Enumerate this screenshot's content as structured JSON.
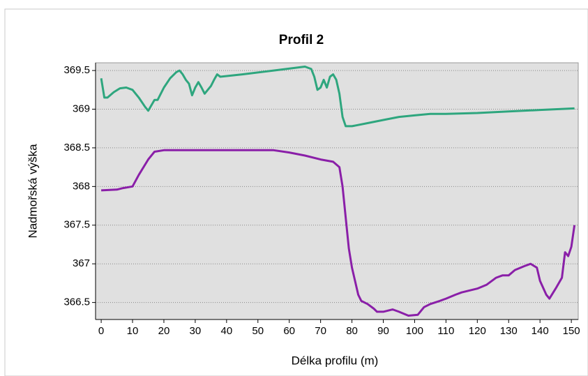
{
  "chart_data": {
    "type": "line",
    "title": "Profil 2",
    "x_label": "Délka profilu (m)",
    "y_label": "Nadmořská výška",
    "series": [
      {
        "color": "#2ea67e",
        "x": [
          0,
          1,
          2,
          4,
          6,
          8,
          10,
          12,
          14,
          15,
          16,
          17,
          18,
          20,
          22,
          24,
          25,
          26,
          27,
          28,
          29,
          30,
          31,
          32,
          33,
          35,
          36,
          37,
          38,
          45,
          55,
          65,
          67,
          68,
          69,
          70,
          71,
          72,
          73,
          74,
          75,
          76,
          77,
          78,
          80,
          85,
          90,
          95,
          100,
          105,
          110,
          120,
          130,
          140,
          151
        ],
        "values": [
          369.4,
          369.15,
          369.15,
          369.22,
          369.27,
          369.28,
          369.25,
          369.15,
          369.03,
          368.98,
          369.05,
          369.12,
          369.12,
          369.28,
          369.4,
          369.48,
          369.5,
          369.45,
          369.38,
          369.33,
          369.18,
          369.28,
          369.35,
          369.28,
          369.2,
          369.3,
          369.38,
          369.45,
          369.42,
          369.45,
          369.5,
          369.55,
          369.52,
          369.42,
          369.25,
          369.28,
          369.38,
          369.28,
          369.42,
          369.45,
          369.38,
          369.2,
          368.9,
          368.78,
          368.78,
          368.82,
          368.86,
          368.9,
          368.92,
          368.94,
          368.94,
          368.95,
          368.97,
          368.99,
          369.01
        ]
      },
      {
        "color": "#8a1fa8",
        "x": [
          0,
          5,
          7,
          10,
          12,
          15,
          17,
          20,
          40,
          55,
          60,
          65,
          70,
          74,
          76,
          77,
          78,
          79,
          80,
          82,
          83,
          85,
          87,
          88,
          90,
          93,
          95,
          98,
          101,
          103,
          105,
          108,
          110,
          113,
          115,
          120,
          123,
          126,
          128,
          130,
          132,
          135,
          137,
          139,
          140,
          142,
          143,
          145,
          147,
          148,
          149,
          150,
          151
        ],
        "values": [
          367.95,
          367.96,
          367.98,
          368.0,
          368.15,
          368.35,
          368.45,
          368.47,
          368.47,
          368.47,
          368.44,
          368.4,
          368.35,
          368.32,
          368.25,
          368.0,
          367.6,
          367.2,
          366.95,
          366.6,
          366.52,
          366.48,
          366.42,
          366.38,
          366.38,
          366.41,
          366.38,
          366.33,
          366.34,
          366.44,
          366.48,
          366.52,
          366.55,
          366.6,
          366.63,
          366.68,
          366.73,
          366.82,
          366.85,
          366.85,
          366.92,
          366.97,
          367.0,
          366.95,
          366.78,
          366.6,
          366.55,
          366.68,
          366.82,
          367.15,
          367.1,
          367.22,
          367.5
        ]
      }
    ],
    "xlim": [
      -1.8,
      152.2
    ],
    "xticks": [
      0,
      10,
      20,
      30,
      40,
      50,
      60,
      70,
      80,
      90,
      100,
      110,
      120,
      130,
      140,
      150
    ],
    "ylim": [
      366.28,
      369.6
    ],
    "yticks": [
      366.5,
      367,
      367.5,
      368,
      368.5,
      369,
      369.5
    ],
    "grid": true
  }
}
